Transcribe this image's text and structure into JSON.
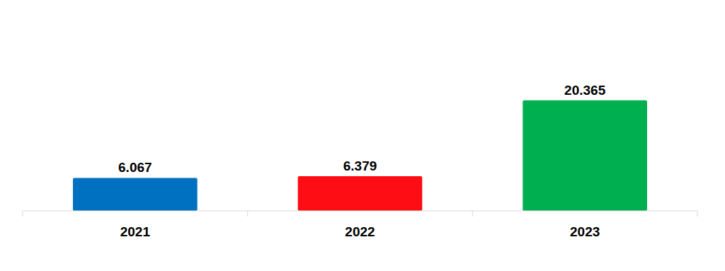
{
  "chart_data": {
    "type": "bar",
    "categories": [
      "2021",
      "2022",
      "2023"
    ],
    "values": [
      6.067,
      6.379,
      20.365
    ],
    "colors": [
      "#0070C0",
      "#FF0D14",
      "#00B050"
    ],
    "ylim": [
      0,
      30
    ],
    "data_labels": true,
    "tick_labels": "x",
    "grid": false
  }
}
